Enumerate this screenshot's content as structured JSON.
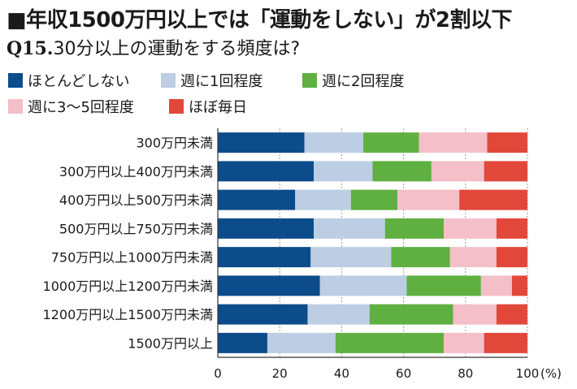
{
  "title": "■年収1500万円以上では「運動をしない」が2割以下",
  "subtitle_q": "Q15.",
  "subtitle_text": "30分以上の運動をする頻度は?",
  "chart_data": {
    "type": "bar",
    "orientation": "horizontal",
    "stacked": true,
    "categories": [
      "300万円未満",
      "300万円以上400万円未満",
      "400万円以上500万円未満",
      "500万円以上750万円未満",
      "750万円以上1000万円未満",
      "1000万円以上1200万円未満",
      "1200万円以上1500万円未満",
      "1500万円以上"
    ],
    "series": [
      {
        "name": "ほとんどしない",
        "color": "#0d4c8a",
        "values": [
          28,
          31,
          25,
          31,
          30,
          33,
          29,
          16
        ]
      },
      {
        "name": "週に1回程度",
        "color": "#bccde4",
        "values": [
          19,
          19,
          18,
          23,
          26,
          28,
          20,
          22
        ]
      },
      {
        "name": "週に2回程度",
        "color": "#5fb040",
        "values": [
          18,
          19,
          15,
          19,
          19,
          24,
          27,
          35
        ]
      },
      {
        "name": "週に3〜5回程度",
        "color": "#f4bfc9",
        "values": [
          22,
          17,
          20,
          17,
          15,
          10,
          14,
          13
        ]
      },
      {
        "name": "ほぼ毎日",
        "color": "#e2483a",
        "values": [
          13,
          14,
          22,
          10,
          10,
          5,
          10,
          14
        ]
      }
    ],
    "xlim": [
      0,
      100
    ],
    "xticks": [
      "0",
      "20",
      "40",
      "60",
      "80",
      "100"
    ],
    "xunit": "(%)",
    "grid": true,
    "legend_position": "top"
  }
}
